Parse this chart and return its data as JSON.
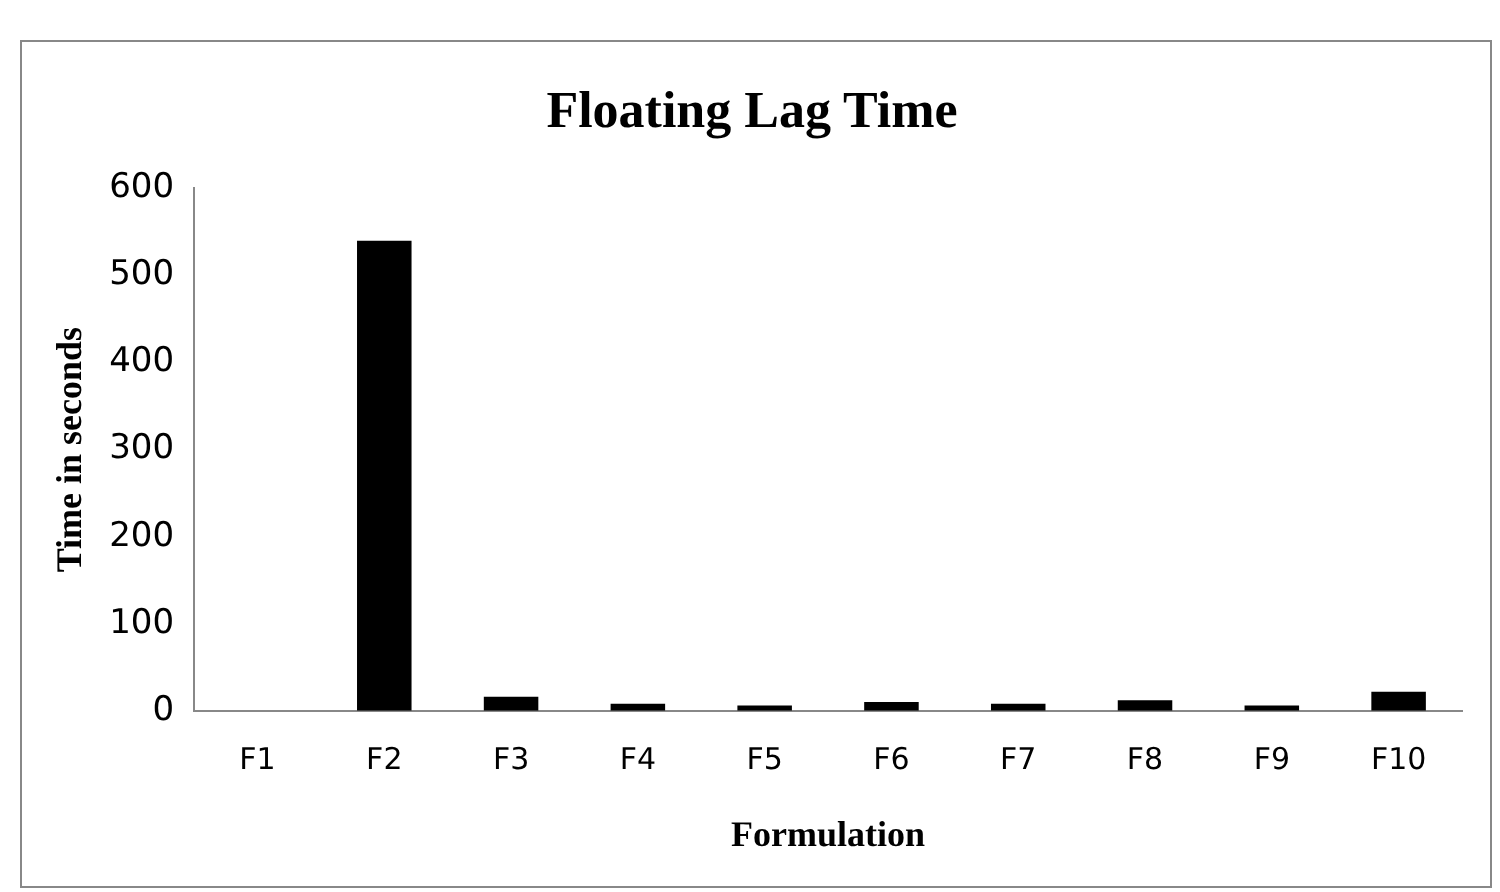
{
  "chart_data": {
    "type": "bar",
    "title": "Floating Lag Time",
    "xlabel": "Formulation",
    "ylabel": "Time in seconds",
    "categories": [
      "F1",
      "F2",
      "F3",
      "F4",
      "F5",
      "F6",
      "F7",
      "F8",
      "F9",
      "F10"
    ],
    "values": [
      0,
      540,
      16,
      8,
      6,
      10,
      8,
      12,
      6,
      22
    ],
    "color": "#000000",
    "ylim": [
      0,
      600
    ],
    "yticks": [
      0,
      100,
      200,
      300,
      400,
      500,
      600
    ],
    "grid": false,
    "legend": false
  }
}
